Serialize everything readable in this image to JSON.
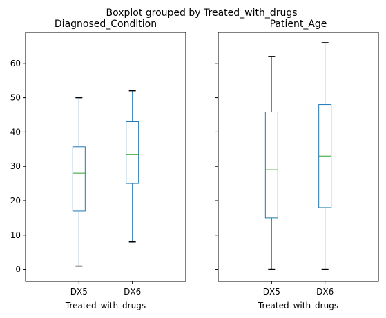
{
  "chart_data": {
    "type": "boxplot",
    "suptitle": "Boxplot grouped by Treated_with_drugs",
    "shared_y": true,
    "ylim": [
      -3.5,
      69
    ],
    "yticks": [
      0,
      10,
      20,
      30,
      40,
      50,
      60
    ],
    "grid": false,
    "colors": {
      "box": "#1f77b4",
      "median": "#2ca02c",
      "frame": "#000000"
    },
    "panels": [
      {
        "title": "Diagnosed_Condition",
        "xlabel": "Treated_with_drugs",
        "categories": [
          "DX5",
          "DX6"
        ],
        "boxes": [
          {
            "whislo": 1,
            "q1": 17,
            "med": 28,
            "q3": 35.7,
            "whishi": 50
          },
          {
            "whislo": 8,
            "q1": 25,
            "med": 33.5,
            "q3": 43,
            "whishi": 52
          }
        ]
      },
      {
        "title": "Patient_Age",
        "xlabel": "Treated_with_drugs",
        "categories": [
          "DX5",
          "DX6"
        ],
        "boxes": [
          {
            "whislo": 0,
            "q1": 15,
            "med": 29,
            "q3": 45.8,
            "whishi": 62
          },
          {
            "whislo": 0,
            "q1": 18,
            "med": 33,
            "q3": 48,
            "whishi": 66
          }
        ]
      }
    ]
  }
}
